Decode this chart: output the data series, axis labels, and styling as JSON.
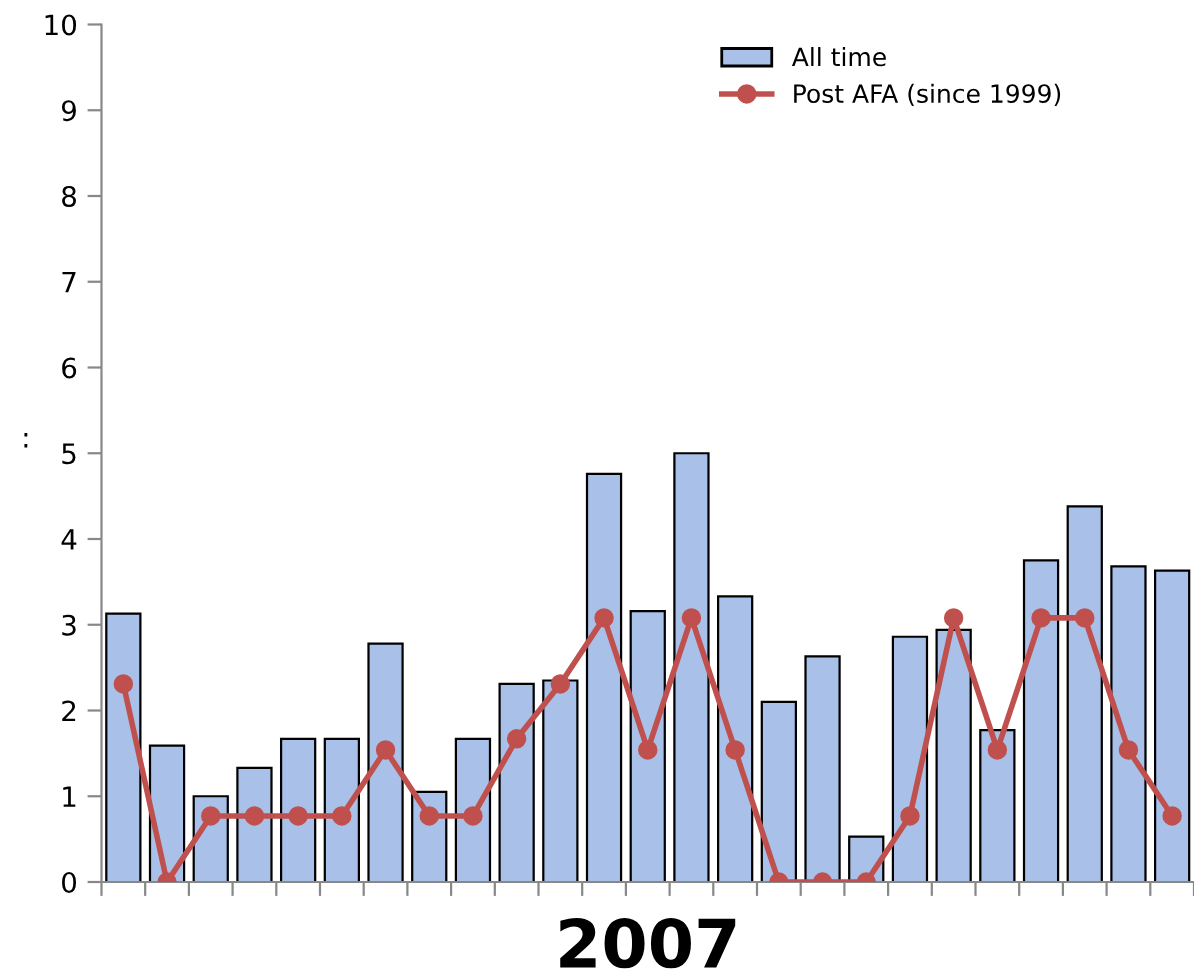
{
  "chart_data": {
    "type": "bar",
    "xlabel": "2007",
    "ylabel": ":",
    "categories": [
      null,
      null,
      null,
      null,
      null,
      null,
      null,
      null,
      null,
      null,
      null,
      null,
      null,
      null,
      null,
      null,
      null,
      null,
      null,
      null,
      null,
      null,
      null,
      null,
      null
    ],
    "series": [
      {
        "name": "All time",
        "color": "#a9c0e8",
        "values": [
          3.13,
          1.59,
          1.0,
          1.33,
          1.67,
          1.67,
          2.78,
          1.05,
          1.67,
          2.31,
          2.35,
          4.76,
          3.16,
          5.0,
          3.33,
          2.1,
          2.63,
          0.53,
          2.86,
          2.94,
          1.77,
          3.75,
          4.38,
          3.68,
          3.63
        ]
      },
      {
        "name": "Post AFA (since 1999)",
        "type": "line",
        "color": "#c0504d",
        "marker": "circle",
        "values": [
          2.31,
          0,
          0.77,
          0.77,
          0.77,
          0.77,
          1.54,
          0.77,
          0.77,
          1.67,
          2.31,
          3.08,
          1.54,
          3.08,
          1.54,
          0,
          0,
          0,
          0.77,
          3.08,
          1.54,
          3.08,
          3.08,
          1.54,
          0.77
        ]
      }
    ],
    "ylim": [
      0,
      10
    ],
    "yticks": [
      0,
      1,
      2,
      3,
      4,
      5,
      6,
      7,
      8,
      9,
      10
    ],
    "grid": false,
    "legend": "top right"
  }
}
